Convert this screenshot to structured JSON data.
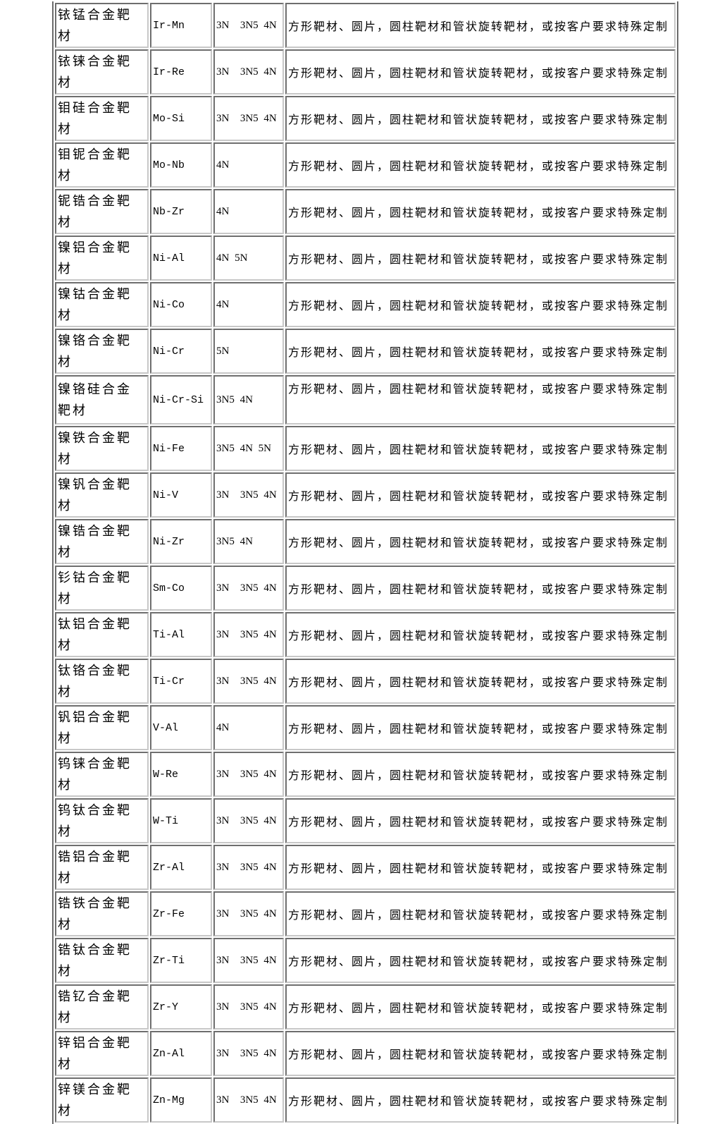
{
  "table": {
    "rows": [
      {
        "name": "铱锰合金靶材",
        "formula": "Ir-Mn",
        "purity": "3N  3N5 4N",
        "desc": "方形靶材、圆片，圆柱靶材和管状旋转靶材，或按客户要求特殊定制"
      },
      {
        "name": "铱铼合金靶材",
        "formula": "Ir-Re",
        "purity": "3N  3N5 4N",
        "desc": "方形靶材、圆片，圆柱靶材和管状旋转靶材，或按客户要求特殊定制"
      },
      {
        "name": "钼硅合金靶材",
        "formula": "Mo-Si",
        "purity": "3N  3N5 4N",
        "desc": "方形靶材、圆片，圆柱靶材和管状旋转靶材，或按客户要求特殊定制"
      },
      {
        "name": "钼铌合金靶材",
        "formula": "Mo-Nb",
        "purity": "4N",
        "desc": "方形靶材、圆片，圆柱靶材和管状旋转靶材，或按客户要求特殊定制"
      },
      {
        "name": "铌锆合金靶材",
        "formula": "Nb-Zr",
        "purity": "4N",
        "desc": "方形靶材、圆片，圆柱靶材和管状旋转靶材，或按客户要求特殊定制"
      },
      {
        "name": "镍铝合金靶材",
        "formula": "Ni-Al",
        "purity": "4N 5N",
        "desc": "方形靶材、圆片，圆柱靶材和管状旋转靶材，或按客户要求特殊定制"
      },
      {
        "name": "镍钴合金靶材",
        "formula": "Ni-Co",
        "purity": "4N",
        "desc": "方形靶材、圆片，圆柱靶材和管状旋转靶材，或按客户要求特殊定制"
      },
      {
        "name": "镍铬合金靶材",
        "formula": "Ni-Cr",
        "purity": "5N",
        "desc": "方形靶材、圆片，圆柱靶材和管状旋转靶材，或按客户要求特殊定制"
      },
      {
        "name": "镍铬硅合金靶材",
        "formula": "Ni-Cr-Si",
        "purity": "3N5 4N",
        "desc": "方形靶材、圆片，圆柱靶材和管状旋转靶材，或按客户要求特殊定制",
        "tall": true
      },
      {
        "name": "镍铁合金靶材",
        "formula": "Ni-Fe",
        "purity": "3N5 4N 5N",
        "desc": "方形靶材、圆片，圆柱靶材和管状旋转靶材，或按客户要求特殊定制"
      },
      {
        "name": "镍钒合金靶材",
        "formula": "Ni-V",
        "purity": "3N  3N5 4N",
        "desc": "方形靶材、圆片，圆柱靶材和管状旋转靶材，或按客户要求特殊定制"
      },
      {
        "name": "镍锆合金靶材",
        "formula": "Ni-Zr",
        "purity": "3N5 4N",
        "desc": "方形靶材、圆片，圆柱靶材和管状旋转靶材，或按客户要求特殊定制"
      },
      {
        "name": "钐钴合金靶材",
        "formula": "Sm-Co",
        "purity": "3N  3N5 4N",
        "desc": "方形靶材、圆片，圆柱靶材和管状旋转靶材，或按客户要求特殊定制"
      },
      {
        "name": "钛铝合金靶材",
        "formula": "Ti-Al",
        "purity": "3N  3N5 4N",
        "desc": "方形靶材、圆片，圆柱靶材和管状旋转靶材，或按客户要求特殊定制"
      },
      {
        "name": "钛铬合金靶材",
        "formula": "Ti-Cr",
        "purity": "3N  3N5 4N",
        "desc": "方形靶材、圆片，圆柱靶材和管状旋转靶材，或按客户要求特殊定制"
      },
      {
        "name": "钒铝合金靶材",
        "formula": "V-Al",
        "purity": "4N",
        "desc": "方形靶材、圆片，圆柱靶材和管状旋转靶材，或按客户要求特殊定制"
      },
      {
        "name": "钨铼合金靶材",
        "formula": "W-Re",
        "purity": "3N  3N5 4N",
        "desc": "方形靶材、圆片，圆柱靶材和管状旋转靶材，或按客户要求特殊定制"
      },
      {
        "name": "钨钛合金靶材",
        "formula": "W-Ti",
        "purity": "3N  3N5 4N",
        "desc": "方形靶材、圆片，圆柱靶材和管状旋转靶材，或按客户要求特殊定制"
      },
      {
        "name": "锆铝合金靶材",
        "formula": "Zr-Al",
        "purity": "3N  3N5 4N",
        "desc": "方形靶材、圆片，圆柱靶材和管状旋转靶材，或按客户要求特殊定制"
      },
      {
        "name": "锆铁合金靶材",
        "formula": "Zr-Fe",
        "purity": "3N  3N5 4N",
        "desc": "方形靶材、圆片，圆柱靶材和管状旋转靶材，或按客户要求特殊定制"
      },
      {
        "name": "锆钛合金靶材",
        "formula": "Zr-Ti",
        "purity": "3N  3N5 4N",
        "desc": "方形靶材、圆片，圆柱靶材和管状旋转靶材，或按客户要求特殊定制"
      },
      {
        "name": "锆钇合金靶材",
        "formula": "Zr-Y",
        "purity": "3N  3N5 4N",
        "desc": "方形靶材、圆片，圆柱靶材和管状旋转靶材，或按客户要求特殊定制"
      },
      {
        "name": "锌铝合金靶材",
        "formula": "Zn-Al",
        "purity": "3N  3N5 4N",
        "desc": "方形靶材、圆片，圆柱靶材和管状旋转靶材，或按客户要求特殊定制"
      },
      {
        "name": "锌镁合金靶材",
        "formula": "Zn-Mg",
        "purity": "3N  3N5 4N",
        "desc": "方形靶材、圆片，圆柱靶材和管状旋转靶材，或按客户要求特殊定制"
      }
    ]
  }
}
